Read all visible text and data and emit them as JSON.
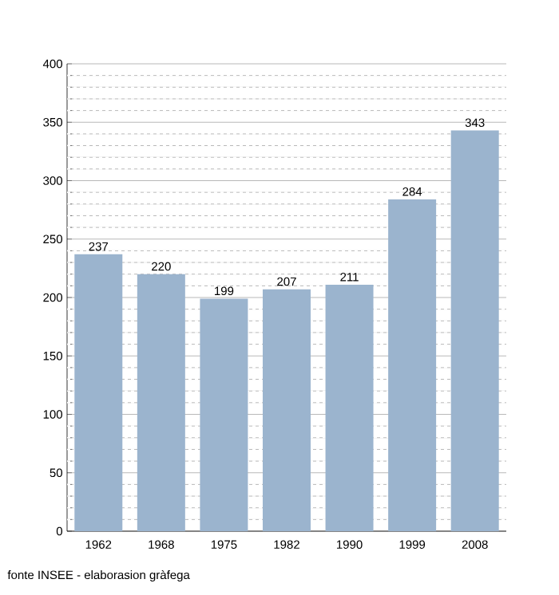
{
  "chart_data": {
    "type": "bar",
    "categories": [
      "1962",
      "1968",
      "1975",
      "1982",
      "1990",
      "1999",
      "2008"
    ],
    "values": [
      237,
      220,
      199,
      207,
      211,
      284,
      343
    ],
    "color": "#9bb4ce",
    "data_labels": true,
    "ylim": [
      0,
      400
    ],
    "yticks": [
      0,
      {
        "value": 10,
        "label": null
      },
      {
        "value": 20,
        "label": null
      },
      {
        "value": 30,
        "label": null
      },
      {
        "value": 40,
        "label": null
      },
      50,
      {
        "value": 60,
        "label": null
      },
      {
        "value": 70,
        "label": null
      },
      {
        "value": 80,
        "label": null
      },
      {
        "value": 90,
        "label": null
      },
      100,
      {
        "value": 110,
        "label": null
      },
      {
        "value": 120,
        "label": null
      },
      {
        "value": 130,
        "label": null
      },
      {
        "value": 140,
        "label": null
      },
      150,
      {
        "value": 160,
        "label": null
      },
      {
        "value": 170,
        "label": null
      },
      {
        "value": 180,
        "label": null
      },
      {
        "value": 190,
        "label": null
      },
      200,
      {
        "value": 210,
        "label": null
      },
      {
        "value": 220,
        "label": null
      },
      {
        "value": 230,
        "label": null
      },
      {
        "value": 240,
        "label": null
      },
      250,
      {
        "value": 260,
        "label": null
      },
      {
        "value": 270,
        "label": null
      },
      {
        "value": 280,
        "label": null
      },
      {
        "value": 290,
        "label": null
      },
      300,
      {
        "value": 310,
        "label": null
      },
      {
        "value": 320,
        "label": null
      },
      {
        "value": 330,
        "label": null
      },
      {
        "value": 340,
        "label": null
      },
      350,
      {
        "value": 360,
        "label": null
      },
      {
        "value": 370,
        "label": null
      },
      {
        "value": 380,
        "label": null
      },
      {
        "value": 390,
        "label": null
      },
      400
    ],
    "grid": "y",
    "annotations": [
      "fonte INSEE - elaborasion gràfega"
    ]
  }
}
